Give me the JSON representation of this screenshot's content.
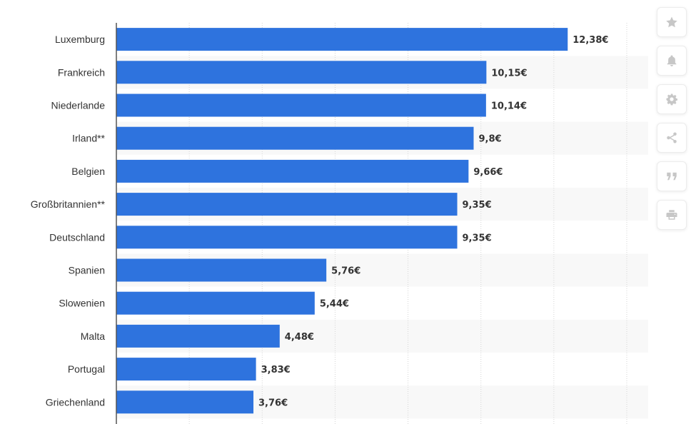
{
  "chart_data": {
    "type": "bar",
    "orientation": "horizontal",
    "categories": [
      "Luxemburg",
      "Frankreich",
      "Niederlande",
      "Irland**",
      "Belgien",
      "Großbritannien**",
      "Deutschland",
      "Spanien",
      "Slowenien",
      "Malta",
      "Portugal",
      "Griechenland"
    ],
    "values": [
      12.38,
      10.15,
      10.14,
      9.8,
      9.66,
      9.35,
      9.35,
      5.76,
      5.44,
      4.48,
      3.83,
      3.76
    ],
    "value_labels": [
      "12,38€",
      "10,15€",
      "10,14€",
      "9,8€",
      "9,66€",
      "9,35€",
      "9,35€",
      "5,76€",
      "5,44€",
      "4,48€",
      "3,83€",
      "3,76€"
    ],
    "xlim": [
      0,
      14
    ],
    "grid_step": 2,
    "grid": true,
    "title": "",
    "xlabel": "",
    "ylabel": "",
    "bar_color": "#2e73de",
    "stripe_color": "#f8f8f8",
    "grid_color": "#d6d6d6",
    "axis_color": "#555555"
  },
  "toolbar": {
    "buttons": [
      {
        "name": "star-button",
        "icon": "star-icon"
      },
      {
        "name": "notification-button",
        "icon": "bell-icon"
      },
      {
        "name": "settings-button",
        "icon": "gear-icon"
      },
      {
        "name": "share-button",
        "icon": "share-icon"
      },
      {
        "name": "cite-button",
        "icon": "quote-icon"
      },
      {
        "name": "print-button",
        "icon": "print-icon"
      }
    ]
  }
}
